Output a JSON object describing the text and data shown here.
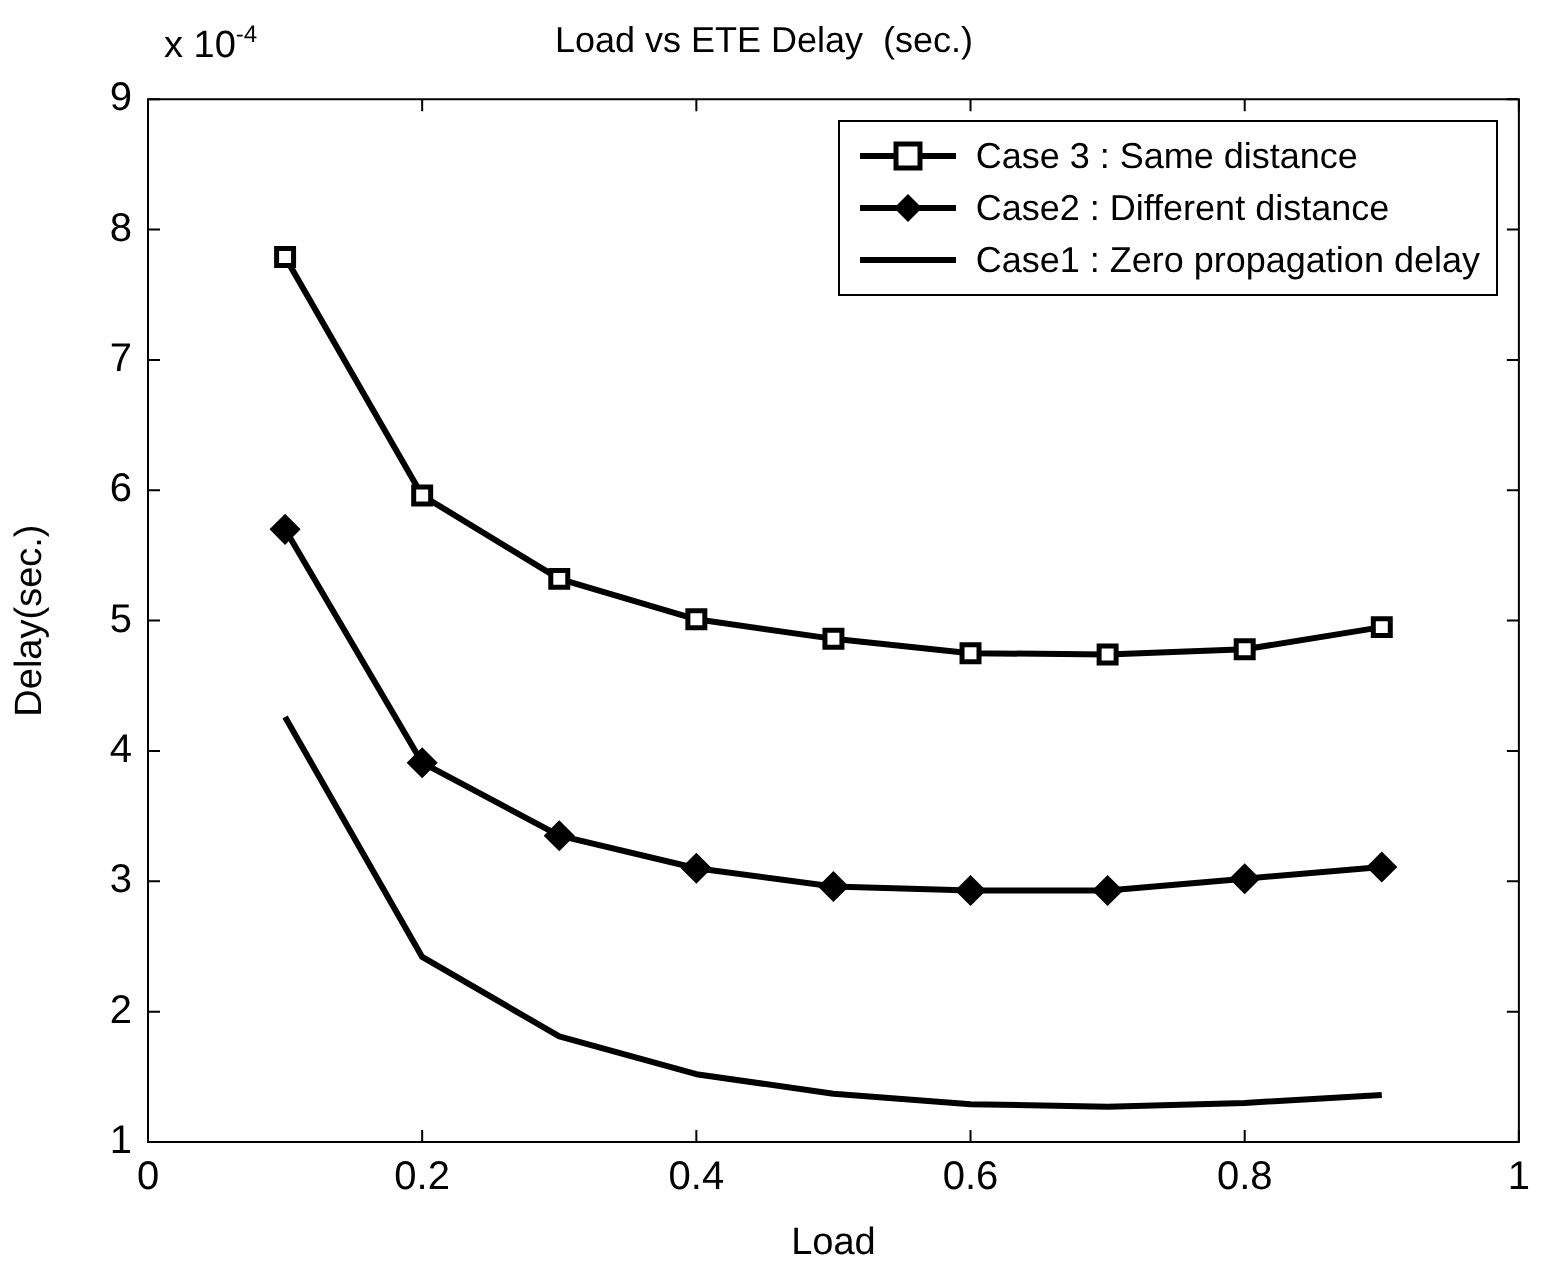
{
  "chart_data": {
    "type": "line",
    "title": "Load vs ETE Delay  (sec.)",
    "xlabel": "Load",
    "ylabel": "Delay(sec.)",
    "annotations": [
      "x 10$^{-4}$"
    ],
    "x": [
      0.1,
      0.2,
      0.3,
      0.4,
      0.5,
      0.6,
      0.7,
      0.8,
      0.9
    ],
    "series": [
      {
        "name": "Case 3 : Same distance",
        "color": "#000000",
        "marker": "square",
        "values": [
          7.79,
          5.96,
          5.32,
          5.01,
          4.86,
          4.75,
          4.74,
          4.78,
          4.95
        ]
      },
      {
        "name": "Case2 : Different distance",
        "color": "#000000",
        "marker": "diamond",
        "values": [
          5.7,
          3.91,
          3.35,
          3.1,
          2.96,
          2.93,
          2.93,
          3.02,
          3.11
        ]
      },
      {
        "name": "Case1 : Zero propagation delay",
        "color": "#000000",
        "marker": "none",
        "values": [
          4.26,
          2.42,
          1.81,
          1.52,
          1.37,
          1.29,
          1.27,
          1.3,
          1.36
        ]
      }
    ],
    "xlim": [
      0,
      1
    ],
    "xticks": [
      0,
      0.2,
      0.4,
      0.6,
      0.8,
      1
    ],
    "ylim": [
      1,
      9
    ],
    "yticks": [
      1,
      2,
      3,
      4,
      5,
      6,
      7,
      8,
      9
    ],
    "grid": false,
    "legend": "top right",
    "line_style": "solid"
  }
}
